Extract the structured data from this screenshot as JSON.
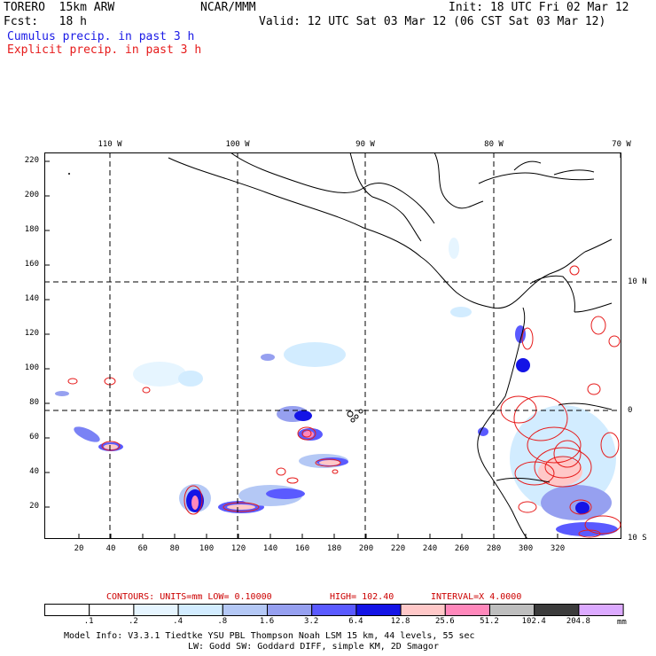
{
  "header": {
    "title": "TORERO  15km ARW",
    "center": "NCAR/MMM",
    "init": "Init: 18 UTC Fri 02 Mar 12",
    "fcst": "Fcst:   18 h",
    "valid": "Valid: 12 UTC Sat 03 Mar 12 (06 CST Sat 03 Mar 12)",
    "cumulus": "Cumulus precip. in past 3 h",
    "explicit": "Explicit precip. in past 3 h"
  },
  "colors": {
    "cumulus": "#1a1ae6",
    "explicit": "#e61a1a",
    "contour_info": "#cc0000"
  },
  "axes": {
    "top_lon": [
      "110 W",
      "100 W",
      "90 W",
      "80 W",
      "70 W"
    ],
    "right_lat": [
      "10 N",
      "0",
      "10 S"
    ],
    "left_y": [
      "220",
      "200",
      "180",
      "160",
      "140",
      "120",
      "100",
      "80",
      "60",
      "40",
      "20"
    ],
    "bottom_x": [
      "20",
      "40",
      "60",
      "80",
      "100",
      "120",
      "140",
      "160",
      "180",
      "200",
      "220",
      "240",
      "260",
      "280",
      "300",
      "320"
    ]
  },
  "contour_info": {
    "contours": "CONTOURS:  UNITS=mm  LOW= 0.10000",
    "high": "HIGH=  102.40",
    "interval": "INTERVAL=X  4.0000"
  },
  "colorbar": {
    "labels": [
      ".1",
      ".2",
      ".4",
      ".8",
      "1.6",
      "3.2",
      "6.4",
      "12.8",
      "25.6",
      "51.2",
      "102.4",
      "204.8"
    ],
    "unit": "mm",
    "colors": [
      "#ffffff",
      "#ffffff",
      "#e6f5ff",
      "#d2ecff",
      "#b4c8f5",
      "#96a0f0",
      "#5a5aff",
      "#1414e6",
      "#ffc8c8",
      "#ff88bb",
      "#bebebe",
      "#3c3c3c",
      "#dcaaff"
    ]
  },
  "footer": {
    "line1": "Model Info: V3.3.1   Tiedtke YSU PBL  Thompson    Noah LSM  15 km,   44 levels,   55 sec",
    "line2": "LW: Godd SW: Goddard DIFF, simple KM, 2D Smagor"
  }
}
